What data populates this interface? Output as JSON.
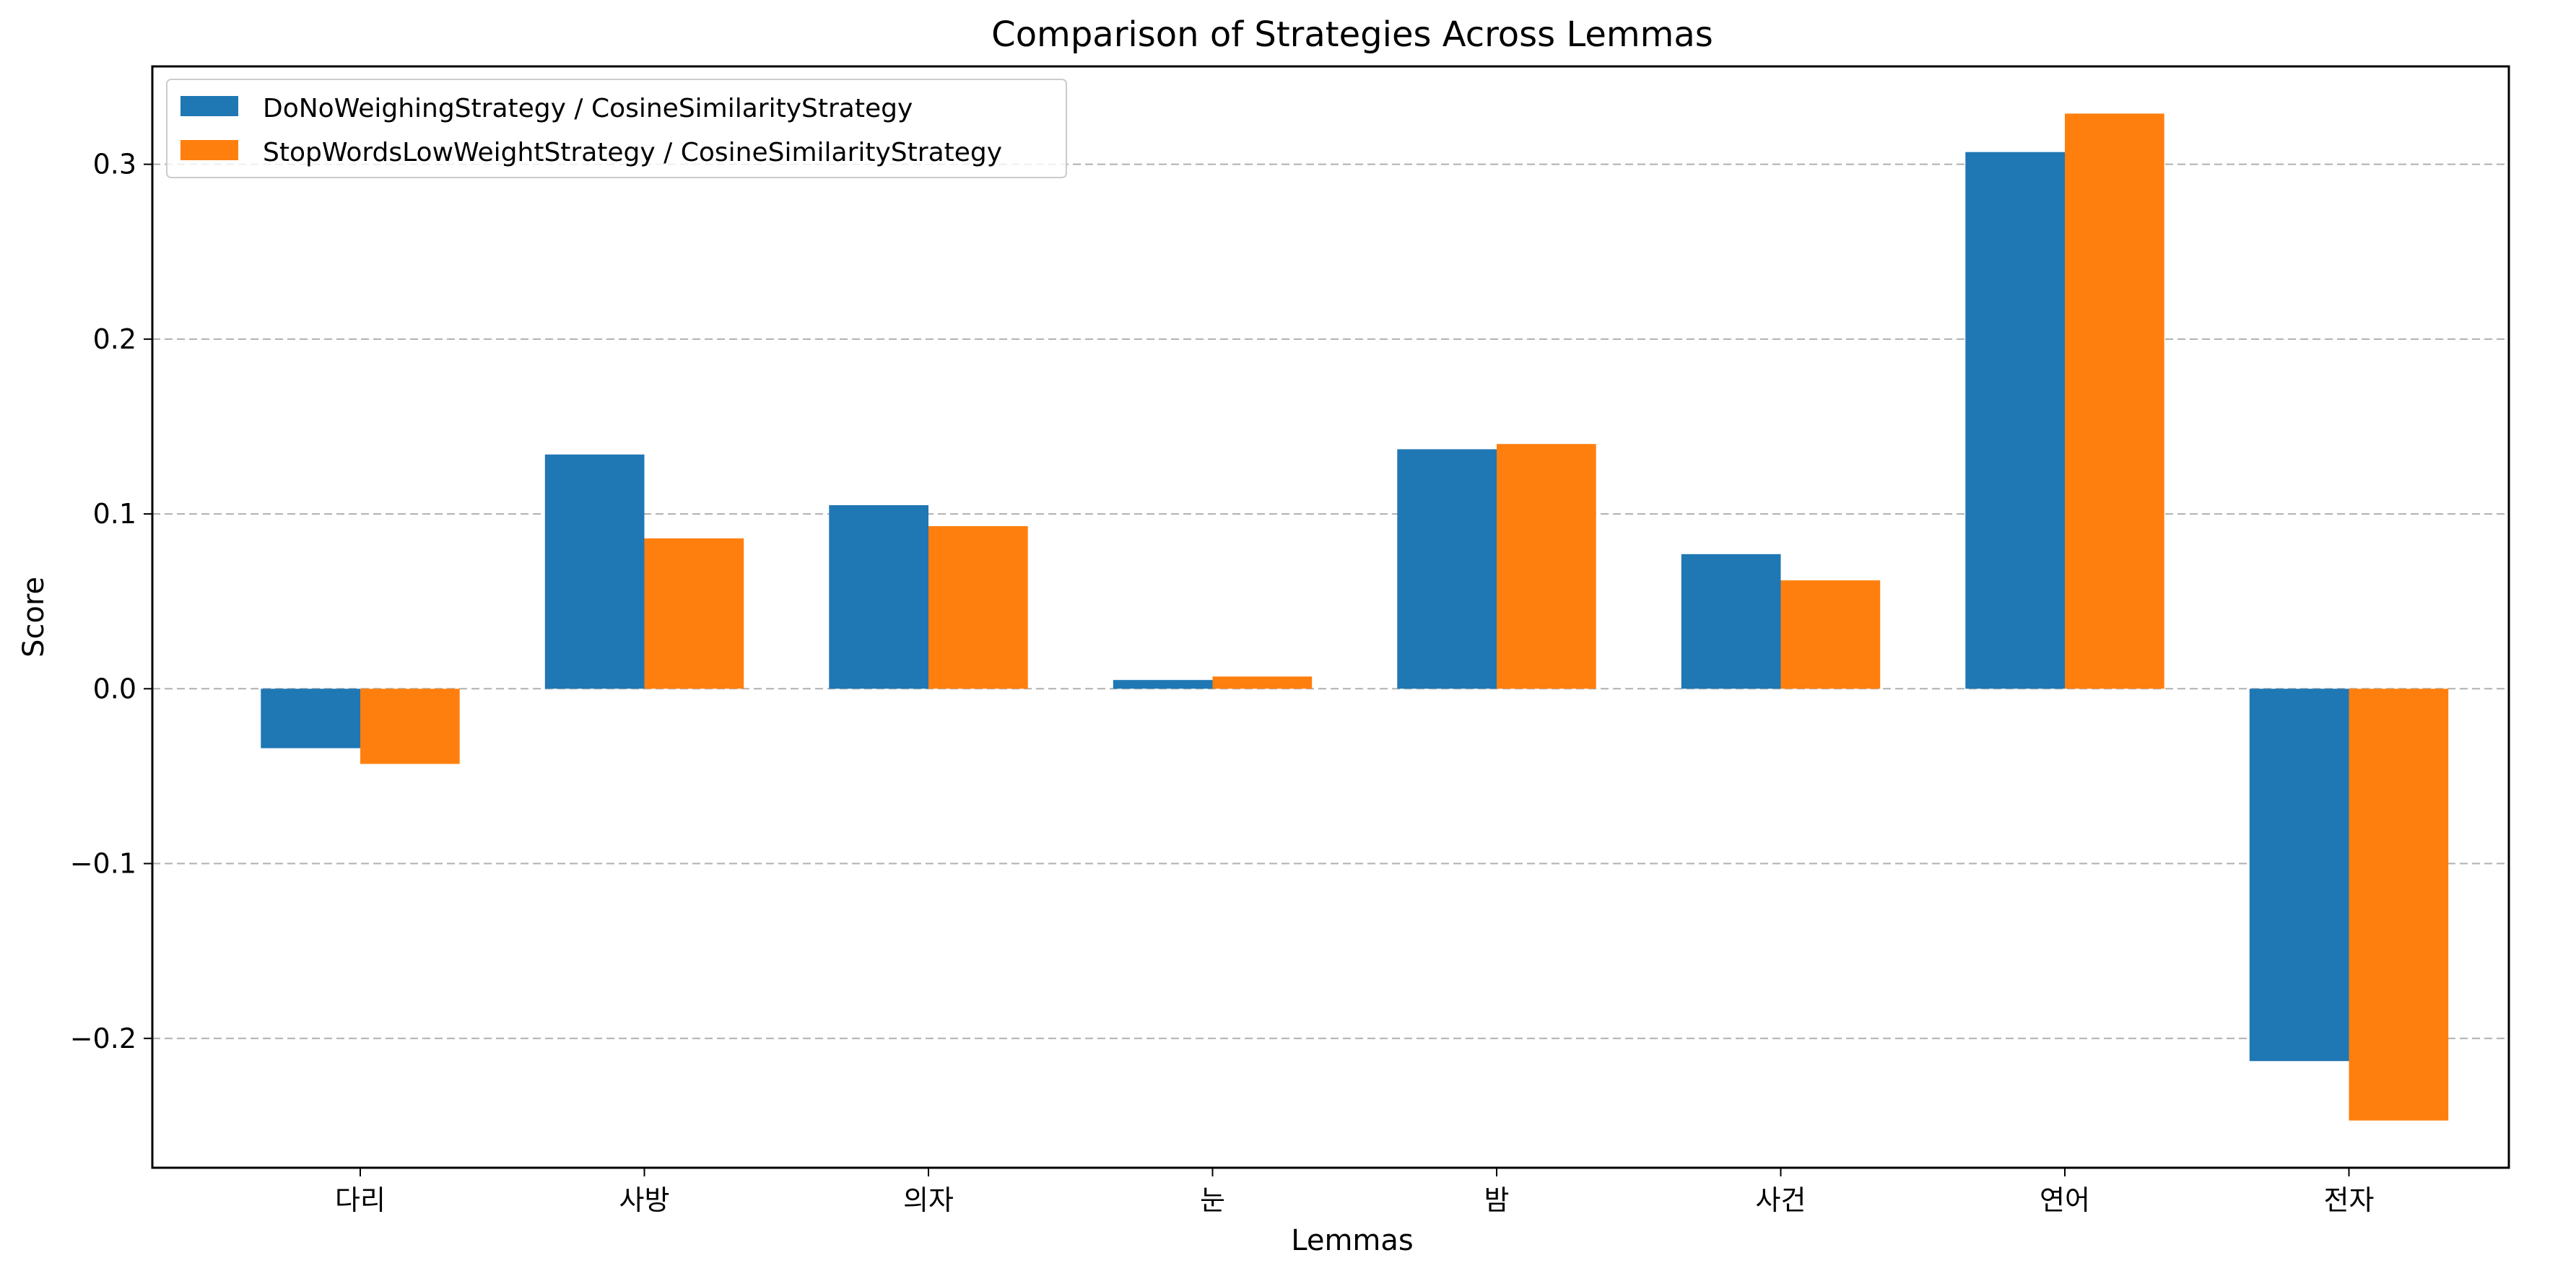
{
  "chart_data": {
    "type": "bar",
    "title": "Comparison of Strategies Across Lemmas",
    "xlabel": "Lemmas",
    "ylabel": "Score",
    "categories": [
      "다리",
      "사방",
      "의자",
      "눈",
      "밤",
      "사건",
      "연어",
      "전자"
    ],
    "series": [
      {
        "name": "DoNoWeighingStrategy / CosineSimilarityStrategy",
        "color": "#1f77b4",
        "values": [
          -0.034,
          0.134,
          0.105,
          0.005,
          0.137,
          0.077,
          0.307,
          -0.213
        ]
      },
      {
        "name": "StopWordsLowWeightStrategy / CosineSimilarityStrategy",
        "color": "#ff7f0e",
        "values": [
          -0.043,
          0.086,
          0.093,
          0.007,
          0.14,
          0.062,
          0.329,
          -0.247
        ]
      }
    ],
    "ylim": [
      -0.274,
      0.356
    ],
    "yticks": [
      -0.2,
      -0.1,
      0.0,
      0.1,
      0.2,
      0.3
    ],
    "ytick_labels": [
      "−0.2",
      "−0.1",
      "0.0",
      "0.1",
      "0.2",
      "0.3"
    ],
    "grid": "y-dashed",
    "legend_position": "top-left"
  }
}
